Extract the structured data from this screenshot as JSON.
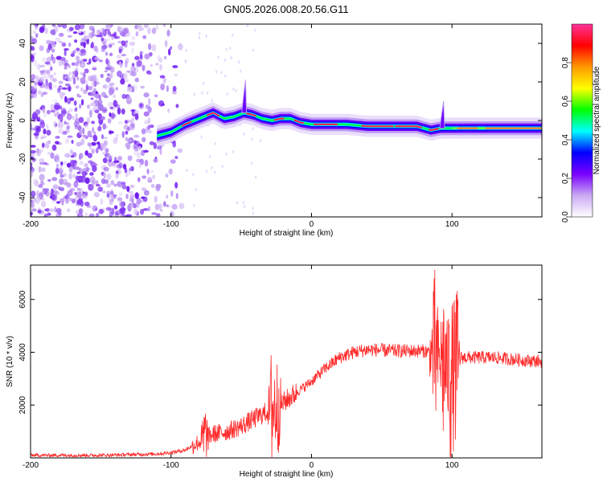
{
  "title": "GN05.2026.008.20.56.G11",
  "chart_data": [
    {
      "type": "heatmap",
      "name": "spectrogram",
      "xlabel": "Height of straight line (km)",
      "ylabel": "Frequency (Hz)",
      "xlim": [
        -200,
        164
      ],
      "ylim": [
        -50,
        50
      ],
      "xticks": [
        -200,
        -100,
        0,
        100
      ],
      "yticks": [
        -40,
        -20,
        0,
        20,
        40
      ],
      "ridge": [
        [
          -110,
          -8
        ],
        [
          -100,
          -6
        ],
        [
          -90,
          -2
        ],
        [
          -80,
          1
        ],
        [
          -70,
          4
        ],
        [
          -62,
          1
        ],
        [
          -55,
          2
        ],
        [
          -48,
          4
        ],
        [
          -42,
          3
        ],
        [
          -35,
          1
        ],
        [
          -28,
          0
        ],
        [
          -22,
          1
        ],
        [
          -15,
          1
        ],
        [
          -8,
          -1
        ],
        [
          0,
          -2
        ],
        [
          10,
          -2
        ],
        [
          25,
          -2
        ],
        [
          40,
          -3
        ],
        [
          60,
          -3
        ],
        [
          75,
          -3
        ],
        [
          85,
          -5
        ],
        [
          92,
          -4
        ],
        [
          100,
          -4
        ],
        [
          120,
          -4
        ],
        [
          140,
          -4
        ],
        [
          164,
          -4
        ]
      ],
      "spikes": [
        {
          "x": -48,
          "top": 21
        },
        {
          "x": 93,
          "top": 10
        }
      ],
      "noise_region": [
        -200,
        -100
      ],
      "colorbar": {
        "label": "Normalized spectral amplitude",
        "range": [
          0.0,
          1.0
        ],
        "ticks": [
          "0.0",
          "0.2",
          "0.4",
          "0.6",
          "0.8"
        ],
        "colors": [
          "#ffffff",
          "#c9a9f2",
          "#7b00ff",
          "#0000ff",
          "#00ffff",
          "#00ff00",
          "#ffff00",
          "#ff9900",
          "#ff0000",
          "#ff3399"
        ]
      }
    },
    {
      "type": "line",
      "name": "snr",
      "xlabel": "Height of straight line (km)",
      "ylabel": "SNR (10 * v/v)",
      "xlim": [
        -200,
        164
      ],
      "ylim": [
        0,
        7300
      ],
      "xticks": [
        -200,
        -100,
        0,
        100
      ],
      "yticks": [
        2000,
        4000,
        6000
      ],
      "color": "#ff2a2a",
      "series": [
        {
          "name": "SNR",
          "x": [
            -200,
            -150,
            -110,
            -100,
            -90,
            -80,
            -70,
            -60,
            -50,
            -40,
            -30,
            -20,
            -10,
            0,
            10,
            20,
            30,
            40,
            60,
            80,
            85,
            90,
            95,
            100,
            105,
            110,
            130,
            150,
            164
          ],
          "values": [
            100,
            100,
            150,
            200,
            300,
            600,
            900,
            1000,
            1200,
            1500,
            1800,
            2100,
            2500,
            2900,
            3400,
            3800,
            4000,
            4100,
            4050,
            4050,
            4000,
            3800,
            3500,
            3000,
            3800,
            3800,
            3800,
            3700,
            3650
          ]
        }
      ],
      "bursts": [
        {
          "x": -76,
          "amp": 1200
        },
        {
          "x": -28,
          "amp": 2600
        },
        {
          "x": -24,
          "amp": 1800
        },
        {
          "x": 88,
          "amp": 2700
        },
        {
          "x": 94,
          "amp": 2500
        },
        {
          "x": 99,
          "amp": 3300
        },
        {
          "x": 103,
          "amp": 2700
        }
      ]
    }
  ]
}
